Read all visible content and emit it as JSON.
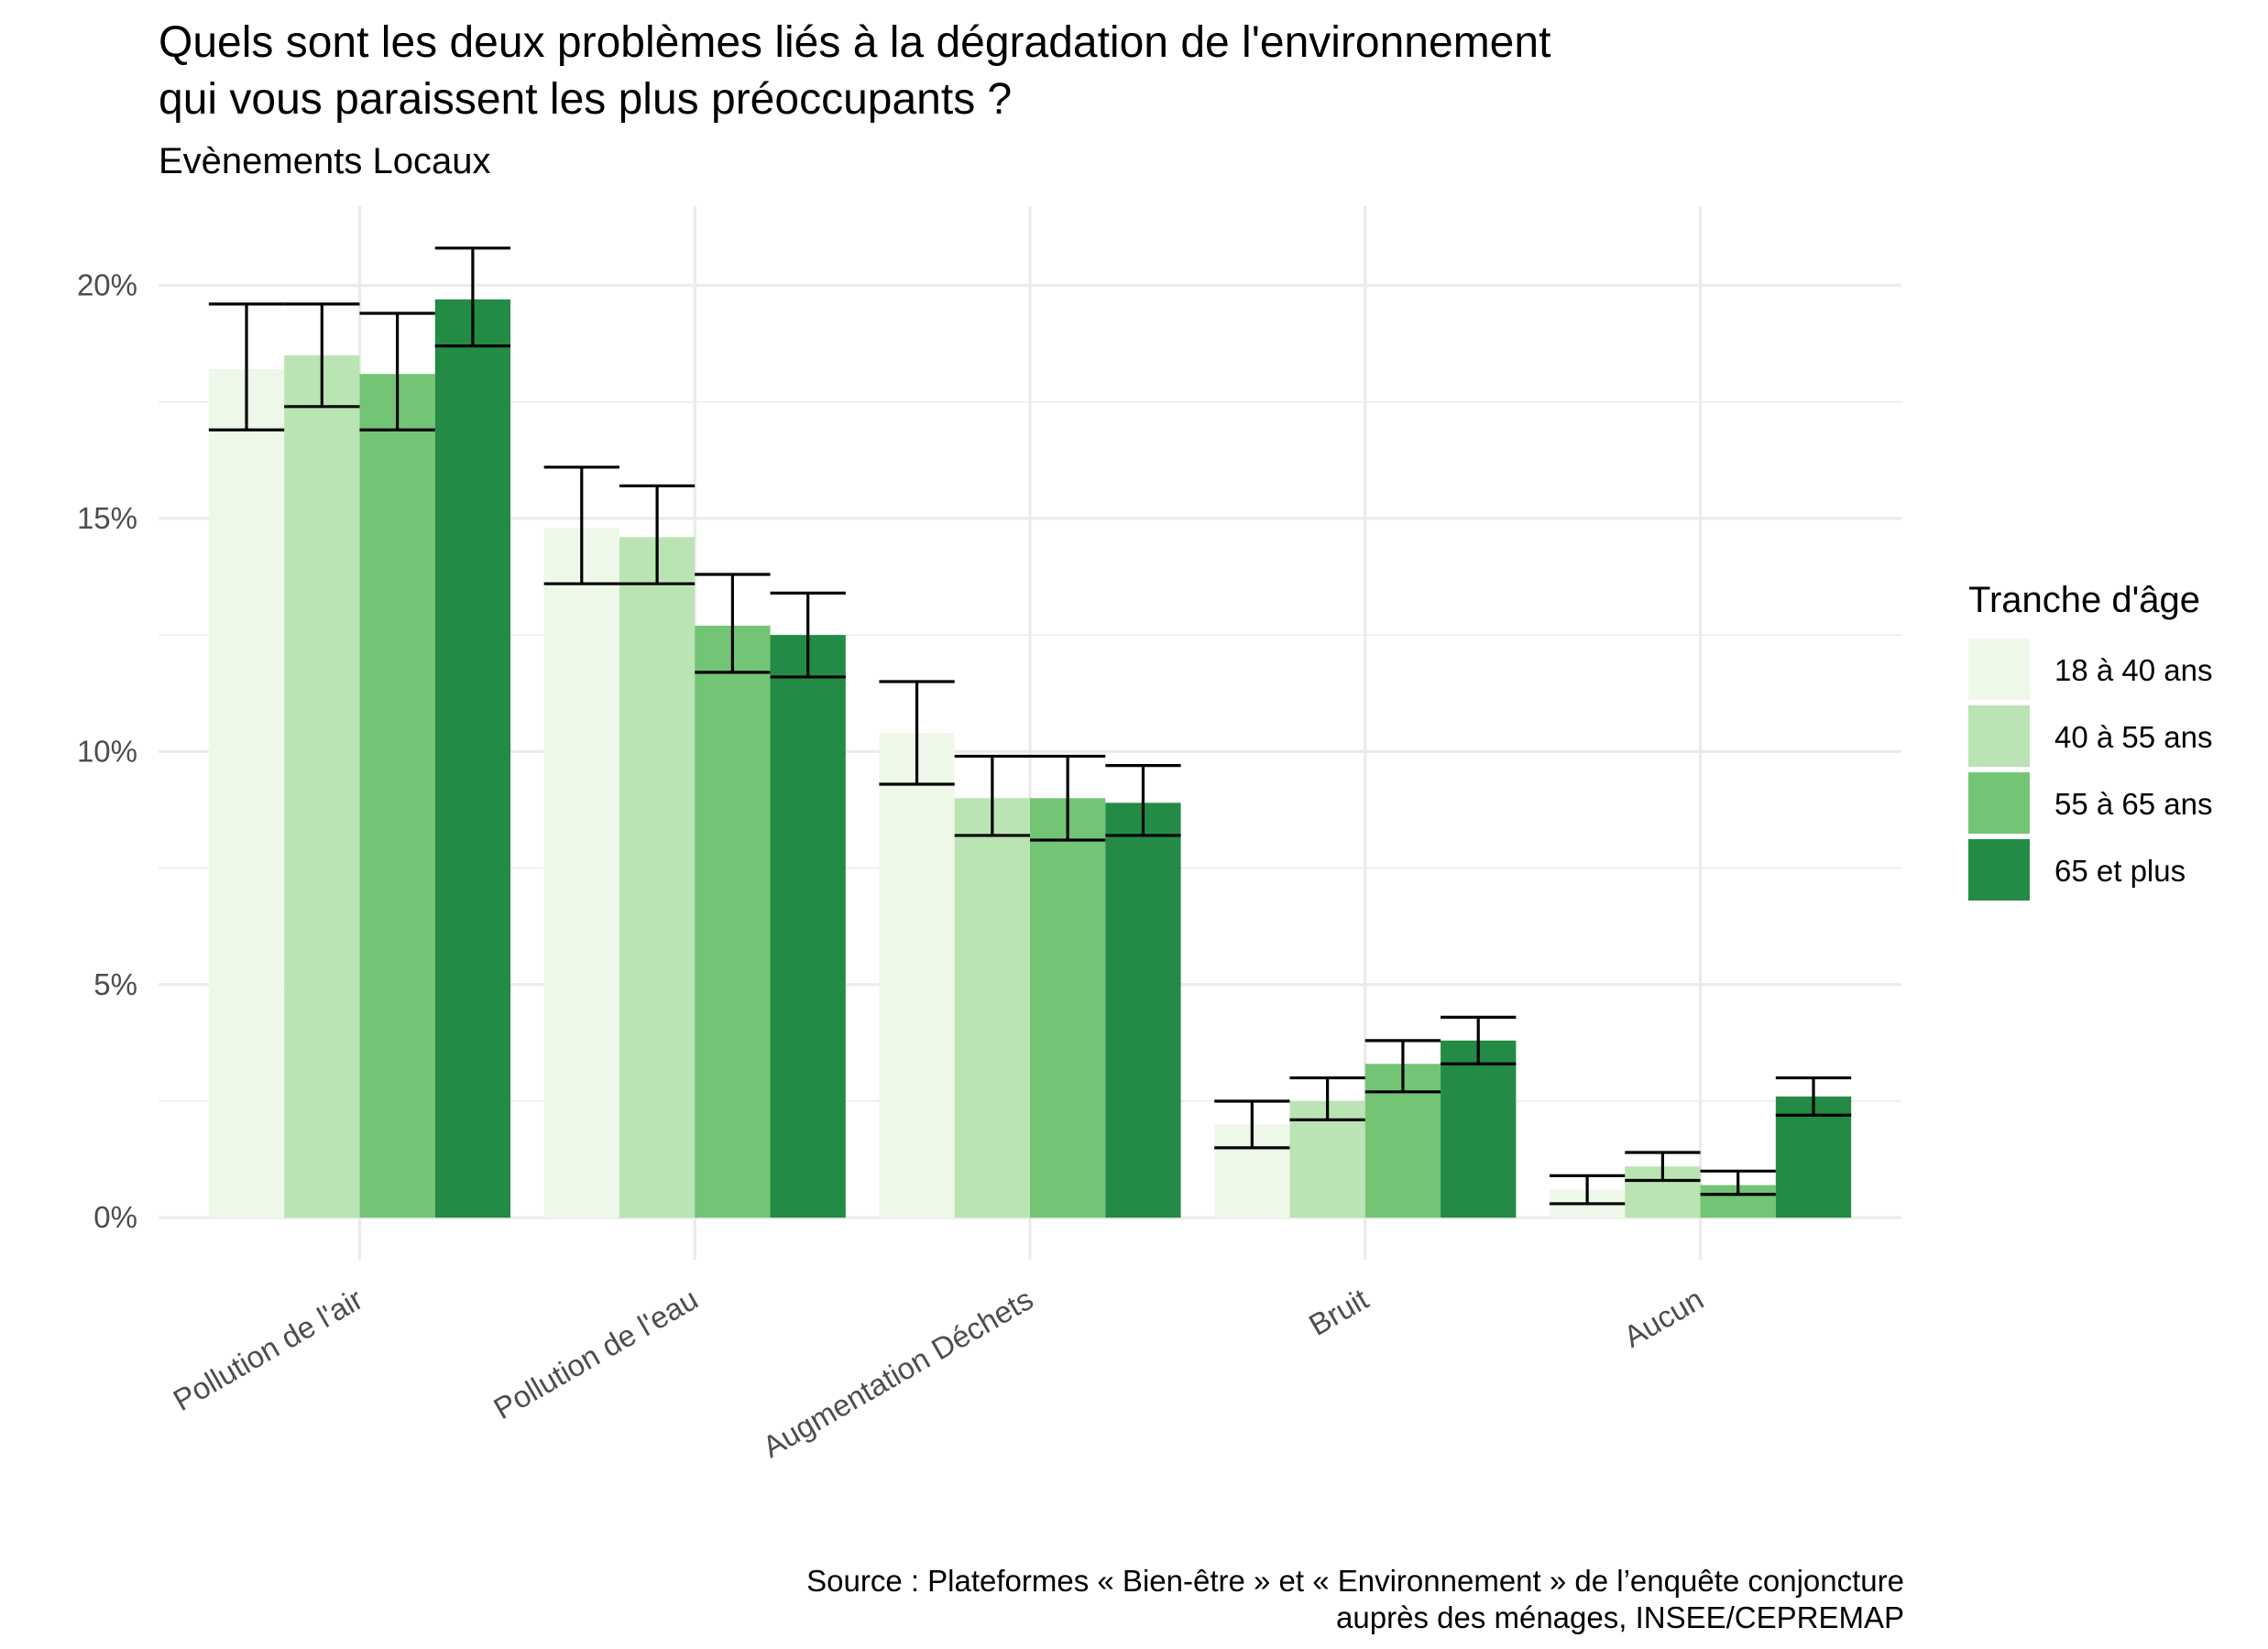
{
  "chart_data": {
    "type": "bar",
    "title": "Quels sont les deux problèmes liés à la dégradation de l'environnement\n qui vous paraissent les plus préoccupants ?",
    "subtitle": "Evènements Locaux",
    "caption": "Source : Plateformes « Bien-être » et « Environnement » de l’enquête conjoncture \nauprès des ménages, INSEE/CEPREMAP",
    "xlabel": "",
    "ylabel": "",
    "categories": [
      "Pollution de l'air",
      "Pollution de l'eau",
      "Augmentation Déchets",
      "Bruit",
      "Aucun"
    ],
    "ylim": [
      -0.009,
      0.217
    ],
    "yticks": [
      0,
      0.05,
      0.1,
      0.15,
      0.2
    ],
    "ytick_labels": [
      "0%",
      "5%",
      "10%",
      "15%",
      "20%"
    ],
    "grid": true,
    "legend": {
      "title": "Tranche d'âge",
      "position": "right"
    },
    "series": [
      {
        "name": "18 à 40 ans",
        "color": "#edf8e9",
        "values": [
          0.182,
          0.148,
          0.104,
          0.02,
          0.006
        ],
        "lower": [
          0.169,
          0.136,
          0.093,
          0.015,
          0.003
        ],
        "upper": [
          0.196,
          0.161,
          0.115,
          0.025,
          0.009
        ]
      },
      {
        "name": "40 à 55 ans",
        "color": "#bae4b3",
        "values": [
          0.185,
          0.146,
          0.09,
          0.025,
          0.011
        ],
        "lower": [
          0.174,
          0.136,
          0.082,
          0.021,
          0.008
        ],
        "upper": [
          0.196,
          0.157,
          0.099,
          0.03,
          0.014
        ]
      },
      {
        "name": "55 à 65 ans",
        "color": "#74c476",
        "values": [
          0.181,
          0.127,
          0.09,
          0.033,
          0.007
        ],
        "lower": [
          0.169,
          0.117,
          0.081,
          0.027,
          0.005
        ],
        "upper": [
          0.194,
          0.138,
          0.099,
          0.038,
          0.01
        ]
      },
      {
        "name": "65 et plus",
        "color": "#238b45",
        "values": [
          0.197,
          0.125,
          0.089,
          0.038,
          0.026
        ],
        "lower": [
          0.187,
          0.116,
          0.082,
          0.033,
          0.022
        ],
        "upper": [
          0.208,
          0.134,
          0.097,
          0.043,
          0.03
        ]
      }
    ]
  }
}
